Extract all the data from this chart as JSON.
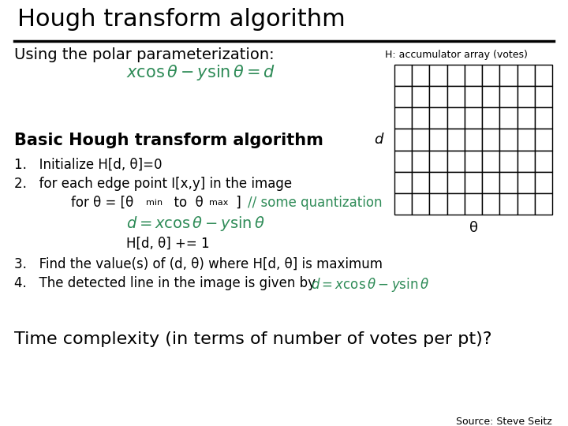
{
  "title": "Hough transform algorithm",
  "bg_color": "#ffffff",
  "title_color": "#000000",
  "title_fontsize": 22,
  "subtitle": "Using the polar parameterization:",
  "subtitle_fontsize": 14,
  "formula1": "$x\\cos\\theta - y\\sin\\theta = d$",
  "formula1_color": "#2e8b57",
  "section_title": "Basic Hough transform algorithm",
  "section_fontsize": 15,
  "accumulator_label": "H: accumulator array (votes)",
  "grid_rows": 7,
  "grid_cols": 9,
  "d_label": "d",
  "theta_label": "θ",
  "step1": "1.   Initialize H[d, θ]=0",
  "step2": "2.   for each edge point I[x,y] in the image",
  "step2b_comment": "// some quantization",
  "step2b_comment_color": "#2e8b57",
  "formula2": "$d = x\\cos\\theta - y\\sin\\theta$",
  "formula2_color": "#2e8b57",
  "step2c": "H[d, θ] += 1",
  "step3": "3.   Find the value(s) of (d, θ) where H[d, θ] is maximum",
  "step4_text": "4.   The detected line in the image is given by ",
  "formula3": "$d = x\\cos\\theta - y\\sin\\theta$",
  "formula3_color": "#2e8b57",
  "time_complexity": "Time complexity (in terms of number of votes per pt)?",
  "time_fontsize": 16,
  "source": "Source: Steve Seitz",
  "source_fontsize": 9,
  "text_color": "#000000",
  "body_fontsize": 12
}
